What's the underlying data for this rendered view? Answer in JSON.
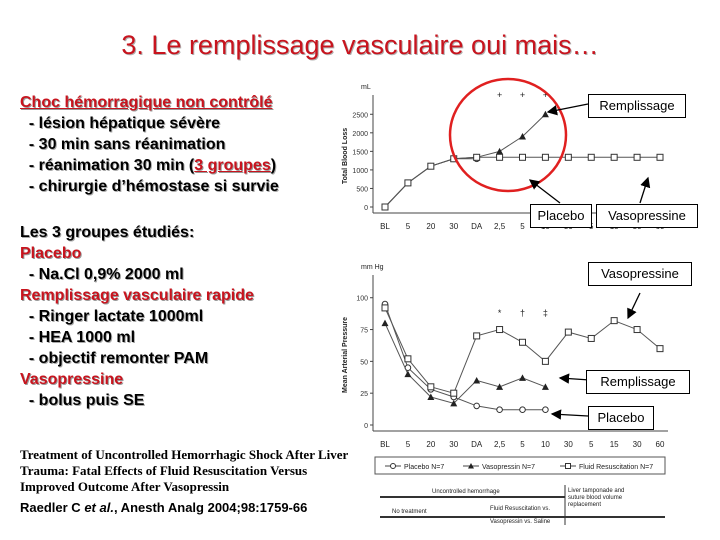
{
  "title": "3. Le remplissage vasculaire oui mais…",
  "intro": {
    "heading": "Choc hémorragique non contrôlé",
    "items": [
      "- lésion hépatique sévère",
      "- 30 min sans réanimation",
      "- réanimation 30 min (",
      "3 groupes",
      ")",
      "- chirurgie d’hémostase si survie"
    ]
  },
  "groups": {
    "heading": "Les 3 groupes étudiés:",
    "placebo": "Placebo",
    "placebo_item": "- Na.Cl 0,9% 2000 ml",
    "remplissage": "Remplissage vasculaire rapide",
    "remplissage_items": [
      "- Ringer lactate 1000ml",
      "- HEA 1000 ml",
      "- objectif remonter PAM"
    ],
    "vaso": "Vasopressine",
    "vaso_item": "- bolus puis SE"
  },
  "reference": {
    "lines": [
      "Treatment of Uncontrolled Hemorrhagic Shock After Liver",
      "Trauma: Fatal Effects of Fluid Resuscitation Versus",
      "Improved Outcome After Vasopressin"
    ],
    "authors": "Raedler C ",
    "etal": "et al.",
    "journal": ", Anesth Analg 2004;98:1759-66"
  },
  "callouts": {
    "remplissage_top": "Remplissage",
    "placebo_mid": "Placebo",
    "vaso_mid": "Vasopressine",
    "vaso_right": "Vasopressine",
    "remplissage_right": "Remplissage",
    "placebo_right": "Placebo"
  },
  "colors": {
    "title_red": "#c8141e",
    "circle_red": "#e02020"
  },
  "chart_data": [
    {
      "type": "line",
      "ylabel": "Total Blood Loss",
      "yunit": "mL",
      "yticks": [
        "0",
        "500",
        "1000",
        "1500",
        "2000",
        "2500"
      ],
      "ylim": [
        0,
        2750
      ],
      "categories": [
        "BL",
        "5",
        "20",
        "30",
        "DA",
        "2,5",
        "5",
        "10",
        "30",
        "5",
        "15",
        "30",
        "60"
      ],
      "significance": [
        "+",
        "+",
        "+"
      ],
      "series": [
        {
          "marker": "circle",
          "values": [
            0,
            650,
            1100,
            1300,
            1300,
            null,
            null,
            null,
            null,
            null,
            null,
            null,
            null
          ]
        },
        {
          "marker": "triangle",
          "values": [
            0,
            650,
            1100,
            1300,
            1340,
            1500,
            1900,
            2500,
            null,
            null,
            null,
            null,
            null
          ]
        },
        {
          "marker": "square",
          "values": [
            0,
            650,
            1100,
            1300,
            1340,
            1340,
            1340,
            1340,
            1340,
            1340,
            1340,
            1340,
            1340
          ]
        }
      ]
    },
    {
      "type": "line",
      "ylabel": "Mean Arterial Pressure",
      "yunit": "mm Hg",
      "yticks": [
        "0",
        "25",
        "50",
        "75",
        "100"
      ],
      "ylim": [
        0,
        110
      ],
      "categories": [
        "BL",
        "5",
        "20",
        "30",
        "DA",
        "2,5",
        "5",
        "10",
        "30",
        "5",
        "15",
        "30",
        "60"
      ],
      "significance": [
        "*",
        "†",
        "‡"
      ],
      "series": [
        {
          "marker": "circle",
          "values": [
            95,
            45,
            28,
            22,
            15,
            12,
            12,
            12,
            null,
            null,
            null,
            null,
            null
          ]
        },
        {
          "marker": "triangle",
          "values": [
            80,
            40,
            22,
            17,
            35,
            30,
            37,
            30,
            null,
            null,
            null,
            null,
            null
          ]
        },
        {
          "marker": "square",
          "values": [
            92,
            52,
            30,
            25,
            70,
            75,
            65,
            50,
            73,
            68,
            82,
            75,
            60
          ]
        }
      ]
    }
  ],
  "legend": {
    "items": [
      "Placebo N=7",
      "Vasopressin N=7",
      "Fluid Resuscitation N=7"
    ],
    "timeline": [
      "Uncontrolled hemorrhage",
      "Liver tamponade and",
      "suture blood volume",
      "replacement",
      "Fluid Resuscitation vs.",
      "Vasopressin vs. Saline",
      "No treatment"
    ]
  }
}
